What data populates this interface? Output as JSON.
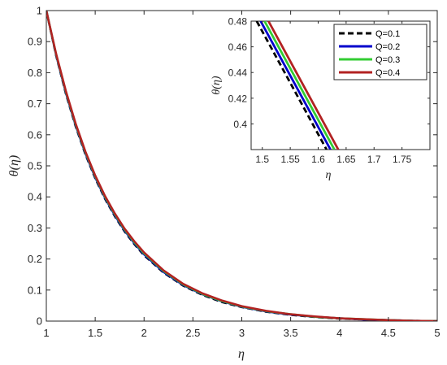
{
  "chart_data": [
    {
      "type": "line",
      "xlabel": "η",
      "ylabel": "θ(η)",
      "xlim": [
        1,
        5
      ],
      "ylim": [
        0,
        1
      ],
      "xticks": [
        "1",
        "1.5",
        "2",
        "2.5",
        "3",
        "3.5",
        "4",
        "4.5",
        "5"
      ],
      "yticks": [
        "0",
        "0.1",
        "0.2",
        "0.3",
        "0.4",
        "0.5",
        "0.6",
        "0.7",
        "0.8",
        "0.9",
        "1"
      ],
      "grid": false,
      "x": [
        1.0,
        1.1,
        1.2,
        1.3,
        1.4,
        1.5,
        1.6,
        1.7,
        1.8,
        1.9,
        2.0,
        2.2,
        2.4,
        2.6,
        2.8,
        3.0,
        3.25,
        3.5,
        3.75,
        4.0,
        4.25,
        4.5,
        4.75,
        5.0
      ],
      "series": [
        {
          "name": "Q=0.1",
          "color": "#000000",
          "dash": true,
          "values": [
            1.0,
            0.855,
            0.732,
            0.627,
            0.537,
            0.46,
            0.394,
            0.338,
            0.289,
            0.248,
            0.212,
            0.156,
            0.114,
            0.084,
            0.061,
            0.045,
            0.03,
            0.02,
            0.013,
            0.008,
            0.005,
            0.003,
            0.001,
            0.0
          ]
        },
        {
          "name": "Q=0.2",
          "color": "#0000cc",
          "dash": false,
          "values": [
            1.0,
            0.857,
            0.735,
            0.63,
            0.54,
            0.463,
            0.397,
            0.341,
            0.292,
            0.251,
            0.215,
            0.158,
            0.116,
            0.086,
            0.063,
            0.046,
            0.031,
            0.021,
            0.014,
            0.009,
            0.005,
            0.003,
            0.001,
            0.0
          ]
        },
        {
          "name": "Q=0.3",
          "color": "#33cc33",
          "dash": false,
          "values": [
            1.0,
            0.859,
            0.738,
            0.633,
            0.543,
            0.466,
            0.4,
            0.344,
            0.295,
            0.254,
            0.218,
            0.161,
            0.118,
            0.087,
            0.064,
            0.047,
            0.032,
            0.022,
            0.014,
            0.009,
            0.006,
            0.003,
            0.001,
            0.0
          ]
        },
        {
          "name": "Q=0.4",
          "color": "#b22222",
          "dash": false,
          "values": [
            1.0,
            0.861,
            0.741,
            0.636,
            0.546,
            0.469,
            0.403,
            0.347,
            0.298,
            0.257,
            0.221,
            0.163,
            0.12,
            0.089,
            0.066,
            0.048,
            0.033,
            0.022,
            0.015,
            0.009,
            0.006,
            0.003,
            0.001,
            0.0
          ]
        }
      ]
    },
    {
      "type": "line",
      "xlabel": "η",
      "ylabel": "θ(η)",
      "xlim": [
        1.48,
        1.8
      ],
      "ylim": [
        0.38,
        0.48
      ],
      "xticks": [
        "1.5",
        "1.55",
        "1.6",
        "1.65",
        "1.7",
        "1.75"
      ],
      "yticks": [
        "0.4",
        "0.42",
        "0.44",
        "0.46",
        "0.48"
      ],
      "legend": "top-right",
      "series": [
        {
          "name": "Q=0.1",
          "color": "#000000",
          "dash": true,
          "x": [
            1.49,
            1.615
          ],
          "values": [
            0.48,
            0.38
          ]
        },
        {
          "name": "Q=0.2",
          "color": "#0000cc",
          "dash": false,
          "x": [
            1.497,
            1.622
          ],
          "values": [
            0.48,
            0.38
          ]
        },
        {
          "name": "Q=0.3",
          "color": "#33cc33",
          "dash": false,
          "x": [
            1.504,
            1.629
          ],
          "values": [
            0.48,
            0.38
          ]
        },
        {
          "name": "Q=0.4",
          "color": "#b22222",
          "dash": false,
          "x": [
            1.511,
            1.636
          ],
          "values": [
            0.48,
            0.38
          ]
        }
      ]
    }
  ]
}
